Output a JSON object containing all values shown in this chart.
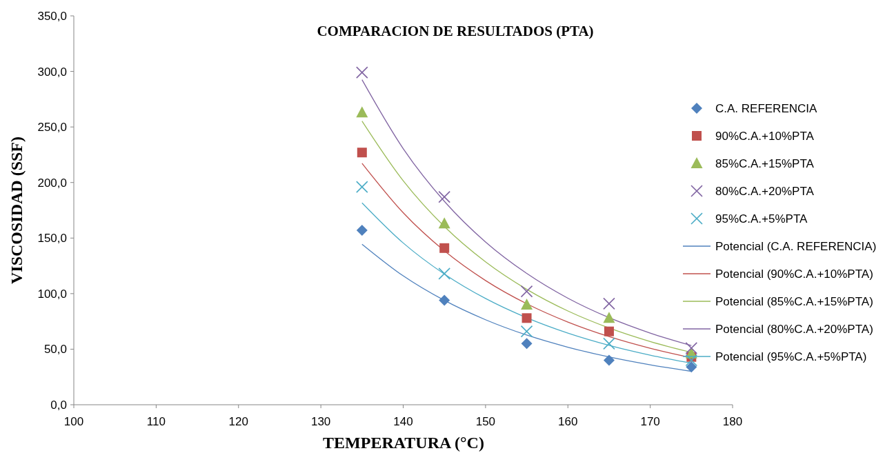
{
  "chart_data": {
    "type": "scatter",
    "title": "COMPARACION DE RESULTADOS (PTA)",
    "xlabel": "TEMPERATURA (°C)",
    "ylabel": "VISCOSIDAD (SSF)",
    "xlim": [
      100,
      180
    ],
    "xticks": [
      100,
      110,
      120,
      130,
      140,
      150,
      160,
      170,
      180
    ],
    "ylim": [
      0,
      350
    ],
    "yticks": [
      {
        "value": 0,
        "label": "0,0"
      },
      {
        "value": 50,
        "label": "50,0"
      },
      {
        "value": 100,
        "label": "100,0"
      },
      {
        "value": 150,
        "label": "150,0"
      },
      {
        "value": 200,
        "label": "200,0"
      },
      {
        "value": 250,
        "label": "250,0"
      },
      {
        "value": 300,
        "label": "300,0"
      },
      {
        "value": 350,
        "label": "350,0"
      }
    ],
    "grid": false,
    "legend": "right",
    "series": [
      {
        "name": "C.A. REFERENCIA",
        "marker": "diamond",
        "color": "#4f81bd",
        "x": [
          135,
          145,
          155,
          165,
          175
        ],
        "values": [
          157,
          94,
          55,
          40,
          34
        ]
      },
      {
        "name": "90%C.A.+10%PTA",
        "marker": "square",
        "color": "#c0504d",
        "x": [
          135,
          145,
          155,
          165,
          175
        ],
        "values": [
          227,
          141,
          78,
          66,
          43
        ]
      },
      {
        "name": "85%C.A.+15%PTA",
        "marker": "triangle",
        "color": "#9bbb59",
        "x": [
          135,
          145,
          155,
          165,
          175
        ],
        "values": [
          263,
          163,
          90,
          78,
          46
        ]
      },
      {
        "name": "80%C.A.+20%PTA",
        "marker": "cross",
        "color": "#8064a2",
        "x": [
          135,
          145,
          155,
          165,
          175
        ],
        "values": [
          299,
          187,
          102,
          91,
          51
        ]
      },
      {
        "name": "95%C.A.+5%PTA",
        "marker": "cross",
        "color": "#4bacc6",
        "x": [
          135,
          145,
          155,
          165,
          175
        ],
        "values": [
          196,
          118,
          66,
          55,
          40
        ]
      },
      {
        "name": "Potencial (C.A. REFERENCIA)",
        "type": "line",
        "marker": "none",
        "color": "#4f81bd",
        "x": [
          135,
          140,
          145,
          150,
          155,
          160,
          165,
          170,
          175
        ],
        "values": [
          144.5,
          116.0,
          93.9,
          76.5,
          62.7,
          51.8,
          43.0,
          35.9,
          30.1
        ]
      },
      {
        "name": "Potencial (90%C.A.+10%PTA)",
        "type": "line",
        "marker": "none",
        "color": "#c0504d",
        "x": [
          135,
          140,
          145,
          150,
          155,
          160,
          165,
          170,
          175
        ],
        "values": [
          217.3,
          172.8,
          138.5,
          111.8,
          90.9,
          74.4,
          61.3,
          50.8,
          42.3
        ]
      },
      {
        "name": "Potencial (85%C.A.+15%PTA)",
        "type": "line",
        "marker": "none",
        "color": "#9bbb59",
        "x": [
          135,
          140,
          145,
          150,
          155,
          160,
          165,
          170,
          175
        ],
        "values": [
          255.3,
          201.6,
          160.4,
          128.6,
          103.9,
          84.4,
          69.1,
          56.9,
          47.1
        ]
      },
      {
        "name": "Potencial (80%C.A.+20%PTA)",
        "type": "line",
        "marker": "none",
        "color": "#8064a2",
        "x": [
          135,
          140,
          145,
          150,
          155,
          160,
          165,
          170,
          175
        ],
        "values": [
          292.5,
          230.5,
          183.1,
          146.5,
          118.2,
          95.9,
          78.4,
          64.5,
          53.3
        ]
      },
      {
        "name": "Potencial (95%C.A.+5%PTA)",
        "type": "line",
        "marker": "none",
        "color": "#4bacc6",
        "x": [
          135,
          140,
          145,
          150,
          155,
          160,
          165,
          170,
          175
        ],
        "values": [
          181.7,
          145.6,
          117.6,
          95.6,
          78.3,
          64.5,
          53.5,
          44.6,
          37.4
        ]
      }
    ]
  }
}
